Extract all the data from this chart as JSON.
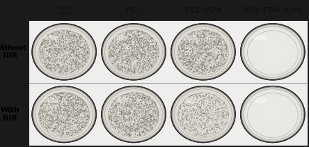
{
  "col_labels": [
    "空白组",
    "PCL",
    "PCL-PDA",
    "PCL-PDA-ε-PL"
  ],
  "row_labels": [
    "Without\nNIR",
    "With\nNIR"
  ],
  "colony_density": [
    [
      "very_high",
      "very_high",
      "very_high",
      "clean"
    ],
    [
      "very_high",
      "very_high",
      "high",
      "clean"
    ]
  ],
  "label_fontsize": 8,
  "row_label_fontsize": 7.5,
  "figsize": [
    4.44,
    2.11
  ],
  "dpi": 100,
  "outer_bg": "#1a1a1a",
  "panel_bg": "#f0eeec",
  "dish_inner_color": "#e8e4de",
  "dish_clean_color": "#ece8e4",
  "dish_outer_color": "#404040",
  "dish_rim_color": "#c8c0b8",
  "colony_color_dark": "#707060",
  "colony_color_mid": "#909080",
  "title_color": "#111111",
  "row_label_color": "#000000"
}
